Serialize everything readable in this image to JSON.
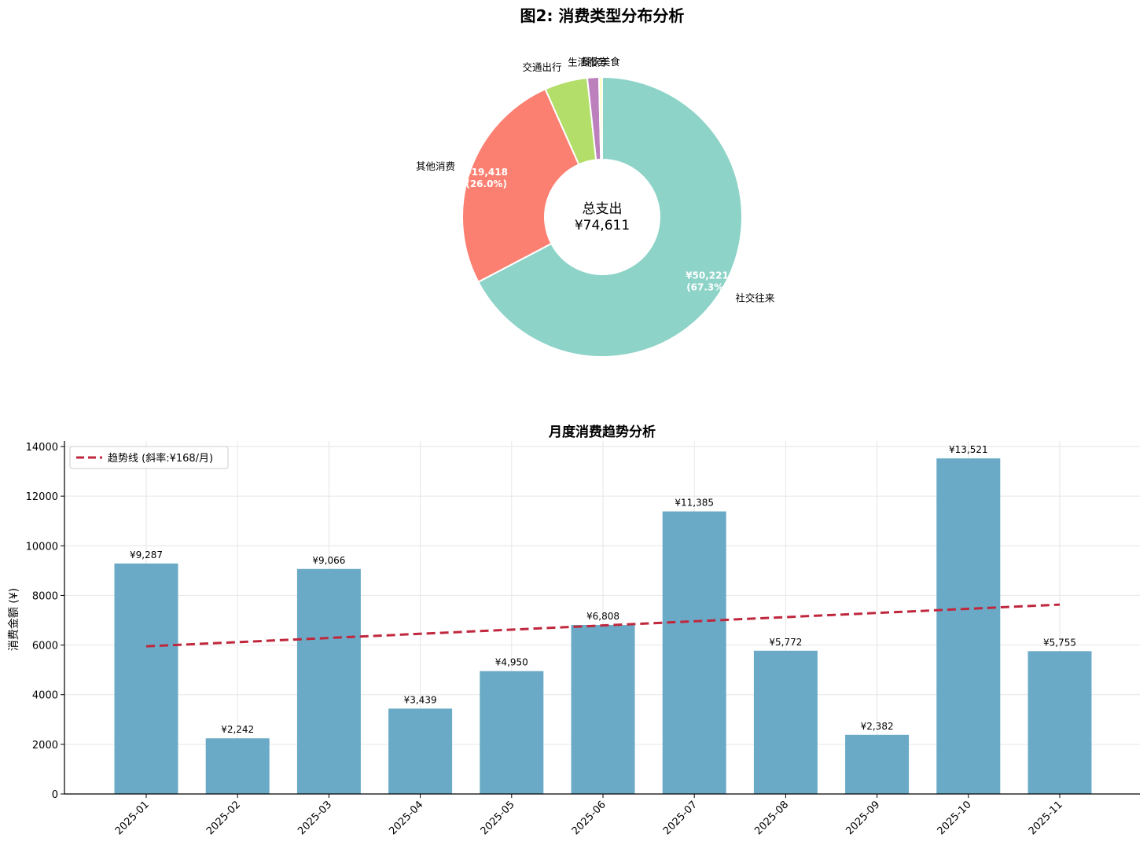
{
  "figure_title": "图2: 消费类型分布分析",
  "chart_data": [
    {
      "type": "pie",
      "style": "donut",
      "categories": [
        "社交往来",
        "其他消费",
        "交通出行",
        "生活服务",
        "餐饮美食"
      ],
      "values": [
        50221,
        19418,
        3700,
        1000,
        272
      ],
      "percent_labels": [
        "(67.3%)",
        "(26.0%)",
        "",
        "",
        ""
      ],
      "value_labels": [
        "¥50,221",
        "¥19,418",
        "",
        "",
        ""
      ],
      "colors": [
        "#8dd3c7",
        "#fb8072",
        "#b3de69",
        "#bc80bd",
        "#ffffb3"
      ],
      "center_title": "总支出",
      "center_value": "¥74,611"
    },
    {
      "type": "bar",
      "title": "月度消费趋势分析",
      "categories": [
        "2025-01",
        "2025-02",
        "2025-03",
        "2025-04",
        "2025-05",
        "2025-06",
        "2025-07",
        "2025-08",
        "2025-09",
        "2025-10",
        "2025-11"
      ],
      "values": [
        9287,
        2242,
        9066,
        3439,
        4950,
        6808,
        11385,
        5772,
        2382,
        13521,
        5755
      ],
      "value_labels": [
        "¥9,287",
        "¥2,242",
        "¥9,066",
        "¥3,439",
        "¥4,950",
        "¥6,808",
        "¥11,385",
        "¥5,772",
        "¥2,382",
        "¥13,521",
        "¥5,755"
      ],
      "ylabel": "消费金额 (¥)",
      "xlabel": "",
      "ylim": [
        0,
        14000
      ],
      "yticks": [
        0,
        2000,
        4000,
        6000,
        8000,
        10000,
        12000,
        14000
      ],
      "grid": true,
      "bar_color": "#6aaac6",
      "trend": {
        "label": "趋势线 (斜率:¥168/月)",
        "start": 5950,
        "end": 7630,
        "color": "#c0273d"
      },
      "legend_position": "top-left"
    }
  ]
}
